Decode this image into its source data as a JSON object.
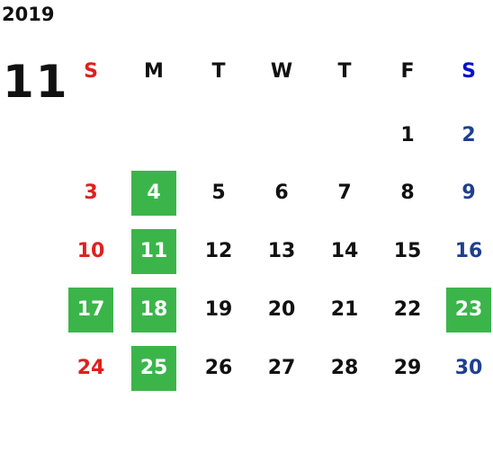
{
  "year": "2019",
  "month": "11",
  "weekdays": [
    "S",
    "M",
    "T",
    "W",
    "T",
    "F",
    "S"
  ],
  "weeks": [
    [
      null,
      null,
      null,
      null,
      null,
      "1",
      "2"
    ],
    [
      "3",
      {
        "label": "4",
        "highlighted": true
      },
      "5",
      "6",
      "7",
      "8",
      "9"
    ],
    [
      "10",
      {
        "label": "11",
        "highlighted": true
      },
      "12",
      "13",
      "14",
      "15",
      "16"
    ],
    [
      {
        "label": "17",
        "highlighted": true
      },
      {
        "label": "18",
        "highlighted": true
      },
      "19",
      "20",
      "21",
      "22",
      {
        "label": "23",
        "highlighted": true
      }
    ],
    [
      "24",
      {
        "label": "25",
        "highlighted": true
      },
      "26",
      "27",
      "28",
      "29",
      "30"
    ]
  ]
}
